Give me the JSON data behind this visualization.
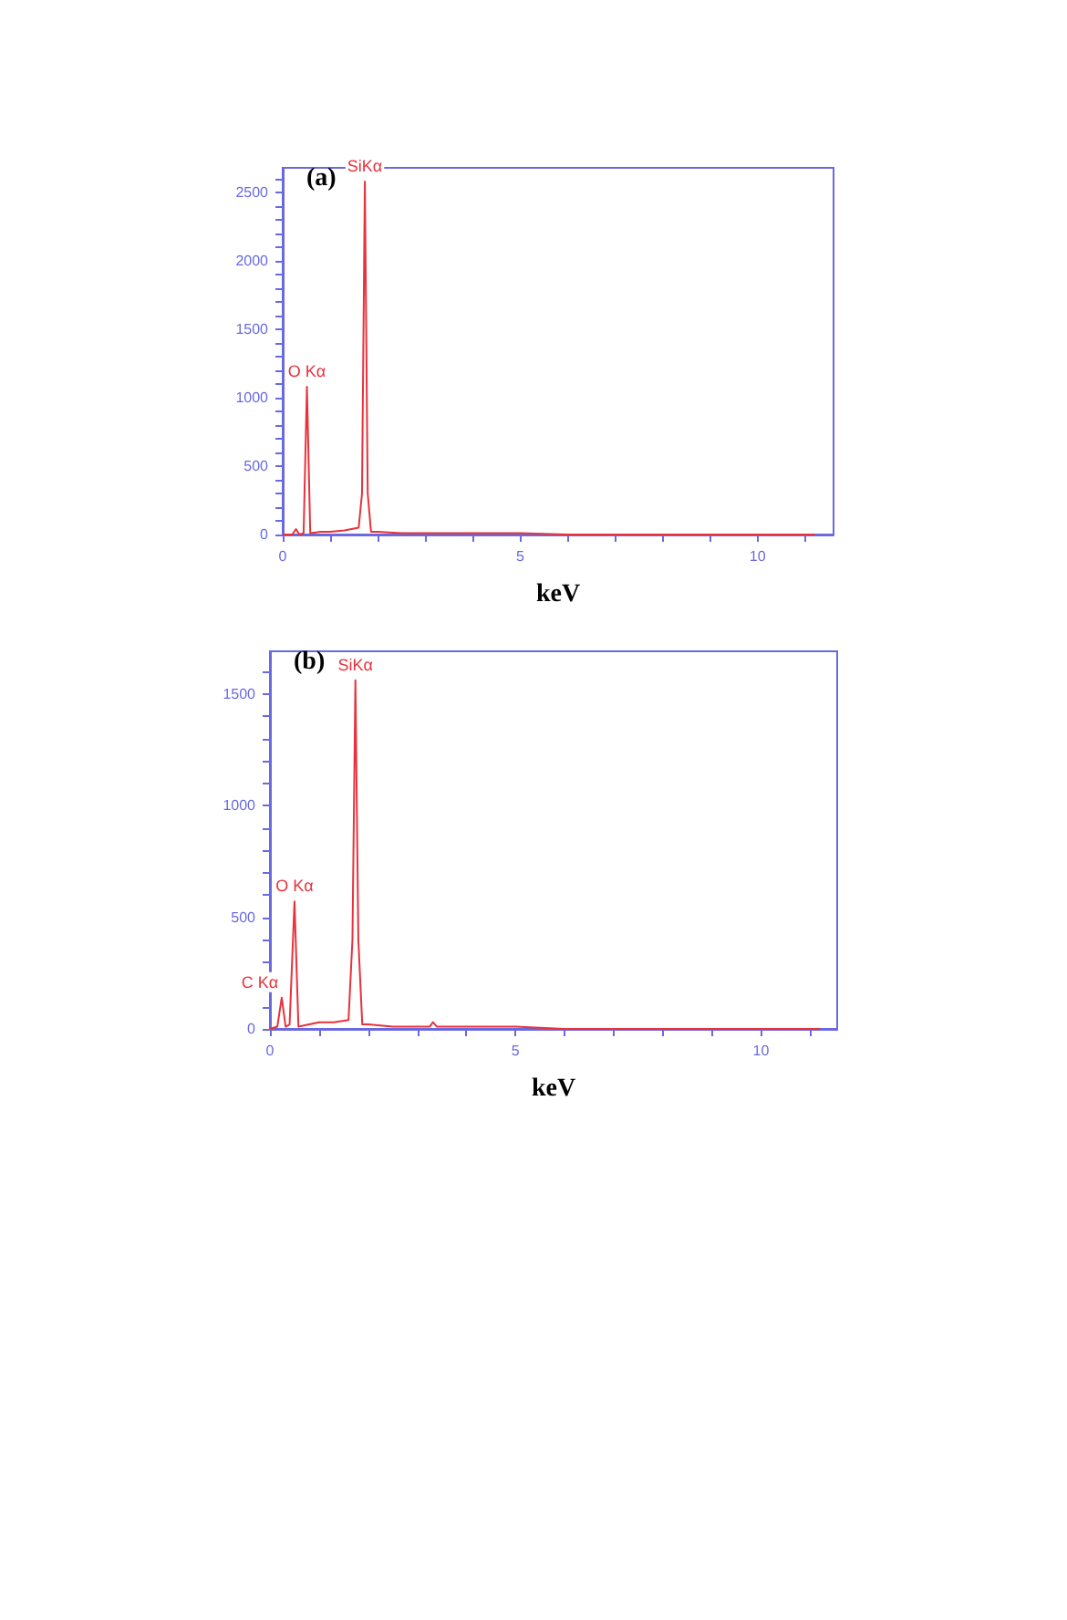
{
  "chart_data": [
    {
      "type": "line",
      "title": "(a)",
      "xlabel": "keV",
      "xlim": [
        0,
        11.6
      ],
      "ylim": [
        0,
        2680
      ],
      "grid": false,
      "marker": "none",
      "line_style": "solid",
      "xticks": [
        0,
        {
          "value": 1,
          "label": null
        },
        {
          "value": 2,
          "label": null
        },
        {
          "value": 3,
          "label": null
        },
        {
          "value": 4,
          "label": null
        },
        5,
        {
          "value": 6,
          "label": null
        },
        {
          "value": 7,
          "label": null
        },
        {
          "value": 8,
          "label": null
        },
        {
          "value": 9,
          "label": null
        },
        10,
        {
          "value": 11,
          "label": null
        }
      ],
      "yticks": [
        0,
        {
          "value": 100,
          "label": null
        },
        {
          "value": 200,
          "label": null
        },
        {
          "value": 300,
          "label": null
        },
        {
          "value": 400,
          "label": null
        },
        500,
        {
          "value": 600,
          "label": null
        },
        {
          "value": 700,
          "label": null
        },
        {
          "value": 800,
          "label": null
        },
        {
          "value": 900,
          "label": null
        },
        1000,
        {
          "value": 1100,
          "label": null
        },
        {
          "value": 1200,
          "label": null
        },
        {
          "value": 1300,
          "label": null
        },
        {
          "value": 1400,
          "label": null
        },
        1500,
        {
          "value": 1600,
          "label": null
        },
        {
          "value": 1700,
          "label": null
        },
        {
          "value": 1800,
          "label": null
        },
        {
          "value": 1900,
          "label": null
        },
        2000,
        {
          "value": 2100,
          "label": null
        },
        {
          "value": 2200,
          "label": null
        },
        {
          "value": 2300,
          "label": null
        },
        {
          "value": 2400,
          "label": null
        },
        2500,
        {
          "value": 2600,
          "label": null
        }
      ],
      "series": [
        {
          "color": "#e8323c",
          "x": [
            0,
            0.2,
            0.28,
            0.35,
            0.44,
            0.51,
            0.58,
            0.8,
            1.0,
            1.3,
            1.6,
            1.67,
            1.73,
            1.79,
            1.86,
            2.0,
            2.5,
            3,
            4,
            5,
            6,
            7,
            8,
            9,
            10,
            11.2
          ],
          "values": [
            0,
            0,
            40,
            0,
            10,
            1080,
            10,
            20,
            20,
            30,
            50,
            300,
            2580,
            300,
            20,
            20,
            10,
            10,
            10,
            10,
            0,
            0,
            0,
            0,
            0,
            0
          ]
        }
      ],
      "annotations": [
        {
          "text": "O Kα",
          "x": 0.51,
          "y": 1080
        },
        {
          "text": "SiKα",
          "x": 1.73,
          "y": 2580
        }
      ]
    },
    {
      "type": "line",
      "title": "(b)",
      "xlabel": "keV",
      "xlim": [
        0,
        11.55
      ],
      "ylim": [
        0,
        1690
      ],
      "grid": false,
      "marker": "none",
      "line_style": "solid",
      "xticks": [
        0,
        {
          "value": 1,
          "label": null
        },
        {
          "value": 2,
          "label": null
        },
        {
          "value": 3,
          "label": null
        },
        {
          "value": 4,
          "label": null
        },
        5,
        {
          "value": 6,
          "label": null
        },
        {
          "value": 7,
          "label": null
        },
        {
          "value": 8,
          "label": null
        },
        {
          "value": 9,
          "label": null
        },
        10,
        {
          "value": 11,
          "label": null
        }
      ],
      "yticks": [
        0,
        {
          "value": 100,
          "label": null
        },
        {
          "value": 200,
          "label": null
        },
        {
          "value": 300,
          "label": null
        },
        {
          "value": 400,
          "label": null
        },
        500,
        {
          "value": 600,
          "label": null
        },
        {
          "value": 700,
          "label": null
        },
        {
          "value": 800,
          "label": null
        },
        {
          "value": 900,
          "label": null
        },
        1000,
        {
          "value": 1100,
          "label": null
        },
        {
          "value": 1200,
          "label": null
        },
        {
          "value": 1300,
          "label": null
        },
        {
          "value": 1400,
          "label": null
        },
        1500,
        {
          "value": 1600,
          "label": null
        }
      ],
      "series": [
        {
          "color": "#e8323c",
          "x": [
            0,
            0.15,
            0.24,
            0.32,
            0.4,
            0.5,
            0.58,
            0.8,
            1.0,
            1.3,
            1.6,
            1.68,
            1.74,
            1.8,
            1.88,
            2.0,
            2.5,
            3.0,
            3.25,
            3.32,
            3.4,
            3.6,
            4,
            5,
            6,
            7,
            8,
            9,
            10,
            11.2
          ],
          "values": [
            0,
            10,
            140,
            10,
            20,
            570,
            10,
            20,
            30,
            30,
            40,
            400,
            1560,
            400,
            20,
            20,
            10,
            10,
            10,
            30,
            10,
            10,
            10,
            10,
            0,
            0,
            0,
            0,
            0,
            0
          ]
        }
      ],
      "annotations": [
        {
          "text": "C Kα",
          "x": 0.24,
          "y": 140
        },
        {
          "text": "O Kα",
          "x": 0.5,
          "y": 570
        },
        {
          "text": "SiKα",
          "x": 1.74,
          "y": 1560
        }
      ]
    }
  ]
}
